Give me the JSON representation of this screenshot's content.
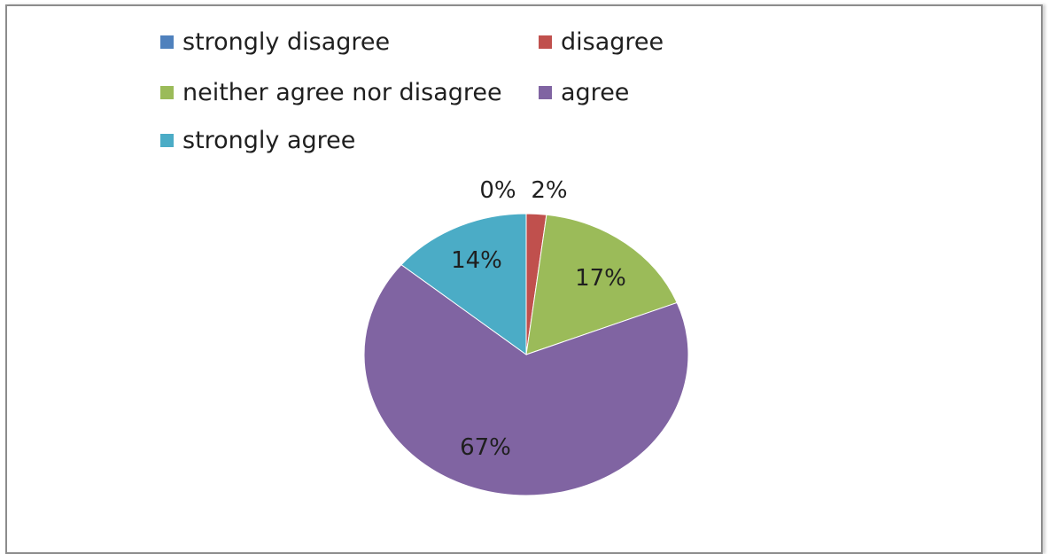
{
  "chart_data": {
    "type": "pie",
    "title": "",
    "legend_position": "top",
    "categories": [
      "strongly disagree",
      "disagree",
      "neither agree nor disagree",
      "agree",
      "strongly agree"
    ],
    "values": [
      0,
      2,
      17,
      67,
      14
    ],
    "labels": [
      "0%",
      "2%",
      "17%",
      "67%",
      "14%"
    ],
    "colors": [
      "#4f81bd",
      "#c0504d",
      "#9bbb59",
      "#8064a2",
      "#4bacc6"
    ],
    "unit": "%"
  }
}
